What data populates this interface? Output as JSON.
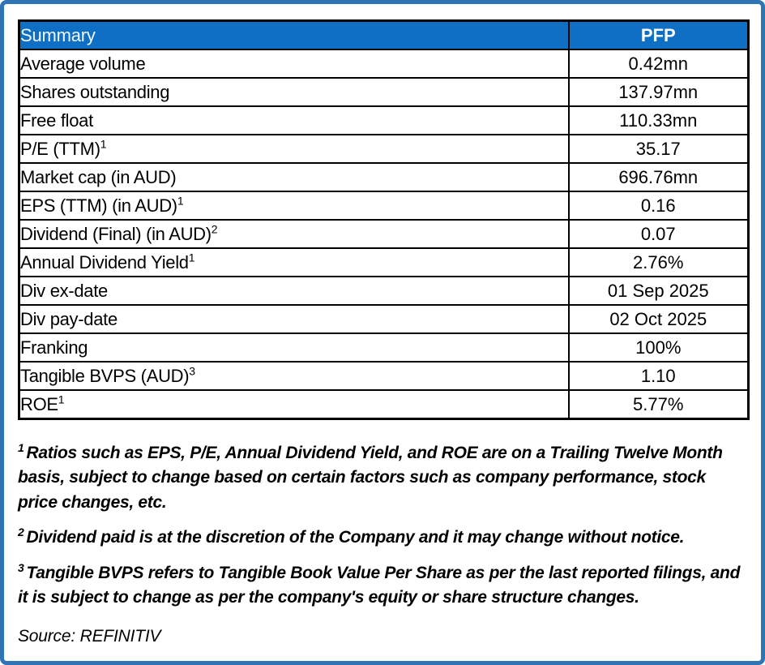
{
  "frame": {
    "border_color": "#2E75B6"
  },
  "table": {
    "header": {
      "label": "Summary",
      "value": "PFP",
      "header_bg_color": "#0E6FC5",
      "header_text_color": "#FFFFFF"
    },
    "rows": [
      {
        "label": "Average volume",
        "sup": "",
        "value": "0.42mn"
      },
      {
        "label": "Shares outstanding",
        "sup": "",
        "value": "137.97mn"
      },
      {
        "label": "Free float",
        "sup": "",
        "value": "110.33mn"
      },
      {
        "label": "P/E (TTM)",
        "sup": "1",
        "value": "35.17"
      },
      {
        "label": "Market cap (in AUD)",
        "sup": "",
        "value": "696.76mn"
      },
      {
        "label": "EPS (TTM) (in AUD)",
        "sup": "1",
        "value": "0.16"
      },
      {
        "label": "Dividend (Final) (in AUD)",
        "sup": "2",
        "value": "0.07"
      },
      {
        "label": "Annual Dividend Yield",
        "sup": "1",
        "value": "2.76%"
      },
      {
        "label": "Div ex-date",
        "sup": "",
        "value": "01 Sep 2025"
      },
      {
        "label": "Div pay-date",
        "sup": "",
        "value": "02 Oct 2025"
      },
      {
        "label": "Franking",
        "sup": "",
        "value": "100%"
      },
      {
        "label": "Tangible BVPS (AUD)",
        "sup": "3",
        "value": "1.10"
      },
      {
        "label": "ROE",
        "sup": "1",
        "value": "5.77%"
      }
    ]
  },
  "footnotes": [
    {
      "sup": "1",
      "text": "Ratios such as EPS, P/E, Annual Dividend Yield, and ROE are on a Trailing Twelve Month basis, subject to change based on certain factors such as company performance, stock price changes, etc."
    },
    {
      "sup": "2",
      "text": "Dividend paid is at the discretion of the Company and it may change without notice."
    },
    {
      "sup": "3",
      "text": "Tangible BVPS refers to Tangible Book Value Per Share as per the last reported filings, and it is subject to change as per the company's equity or share structure changes."
    }
  ],
  "source": "Source: REFINITIV"
}
